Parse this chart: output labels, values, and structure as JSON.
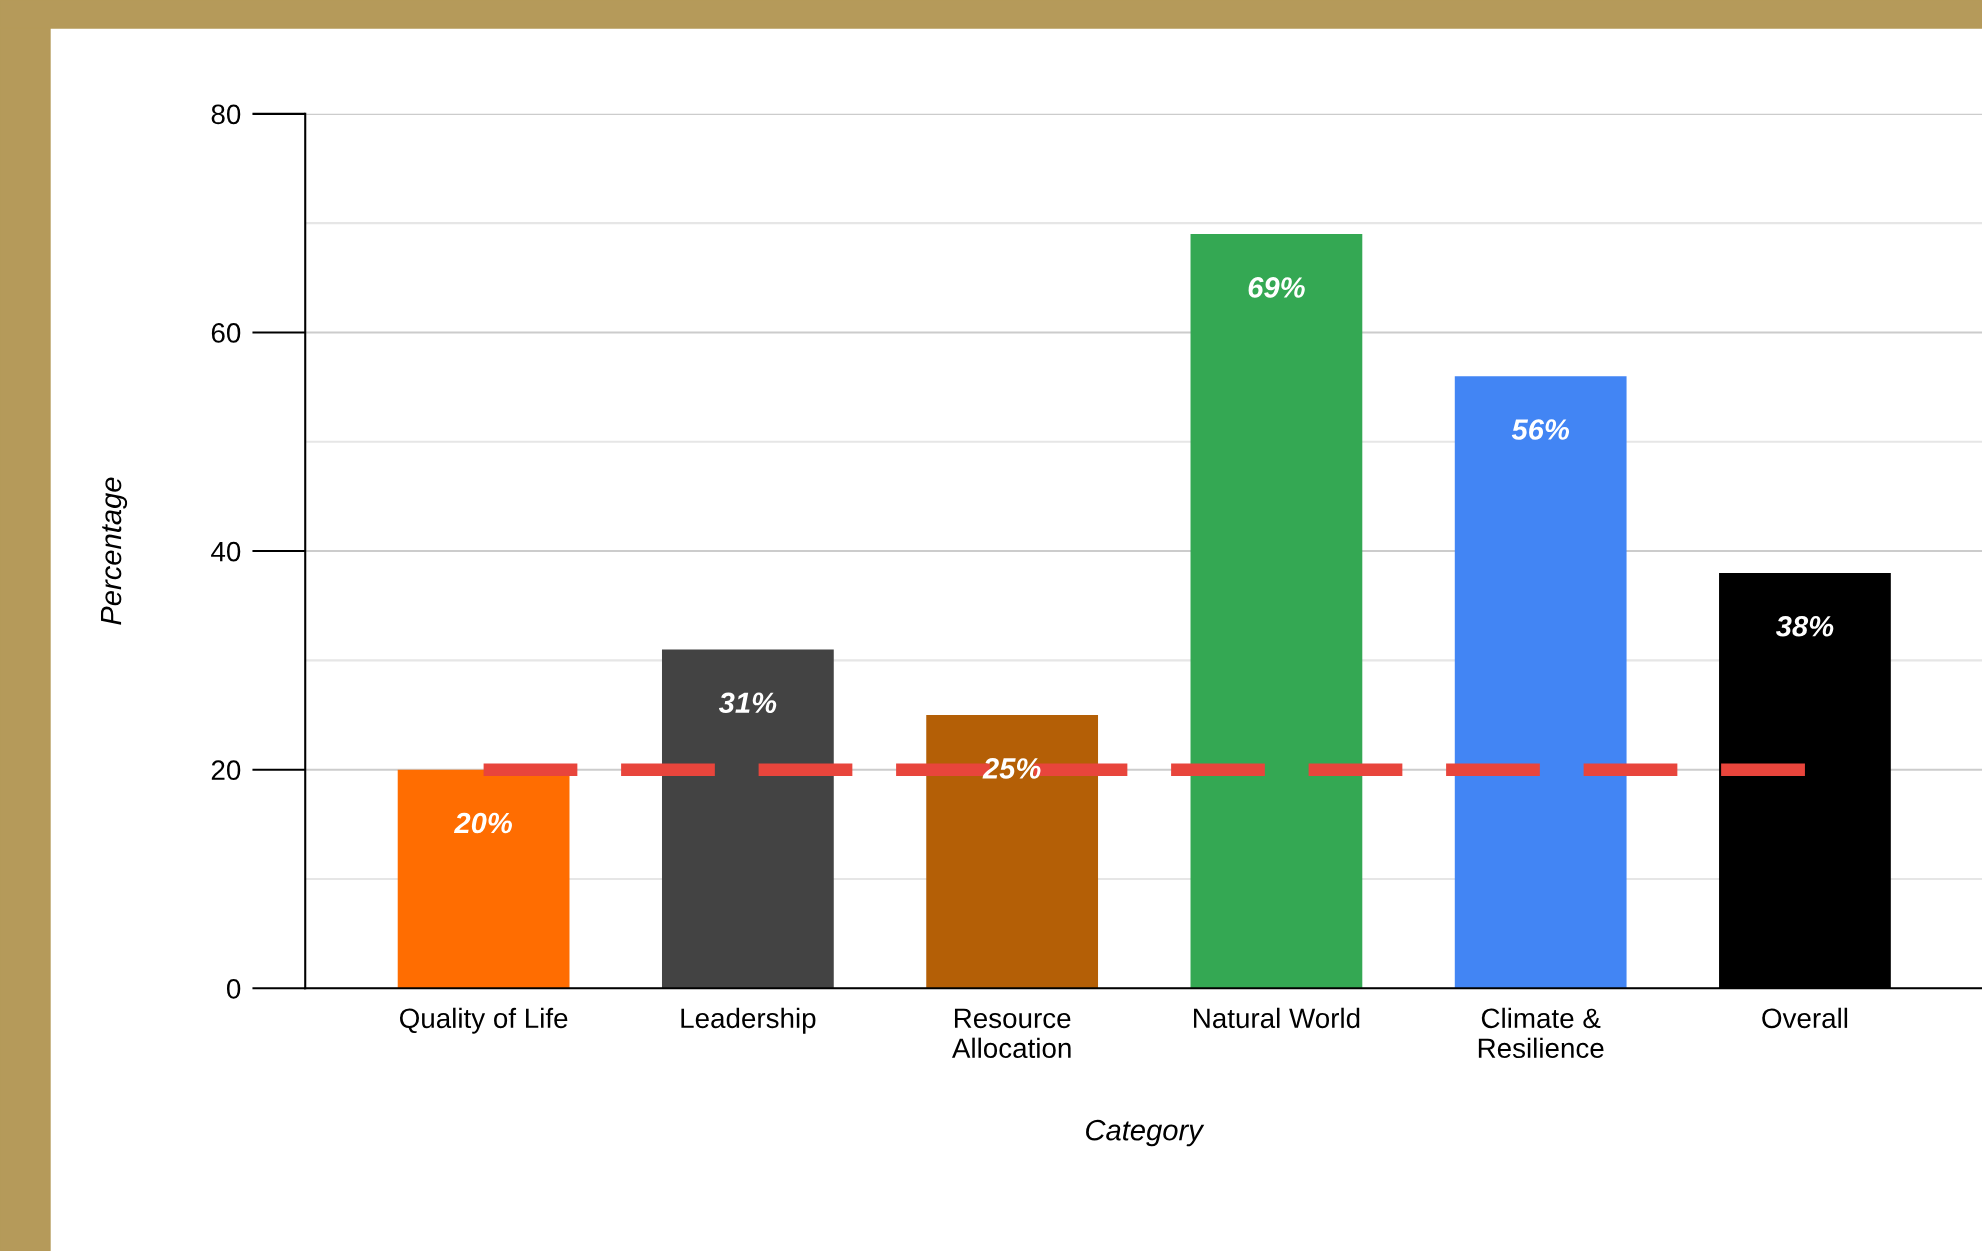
{
  "chart_data": {
    "type": "bar",
    "xlabel": "Category",
    "ylabel": "Percentage",
    "categories": [
      "Quality of Life",
      "Leadership",
      "Resource\nAllocation",
      "Natural World",
      "Climate &\nResilience",
      "Overall"
    ],
    "values": [
      20,
      31,
      25,
      69,
      56,
      38
    ],
    "colors": [
      "#ff6d01",
      "#434343",
      "#b45f06",
      "#34a853",
      "#4285f4",
      "#000000"
    ],
    "value_labels": [
      "20%",
      "31%",
      "25%",
      "69%",
      "56%",
      "38%"
    ],
    "ylim": [
      0,
      80
    ],
    "yticks": [
      0,
      20,
      40,
      60,
      80
    ],
    "grid": "y",
    "ref_lines": [
      {
        "axis": "y",
        "value": 20,
        "label": null,
        "color": "#e8453c",
        "line_style": "dashed"
      }
    ]
  }
}
